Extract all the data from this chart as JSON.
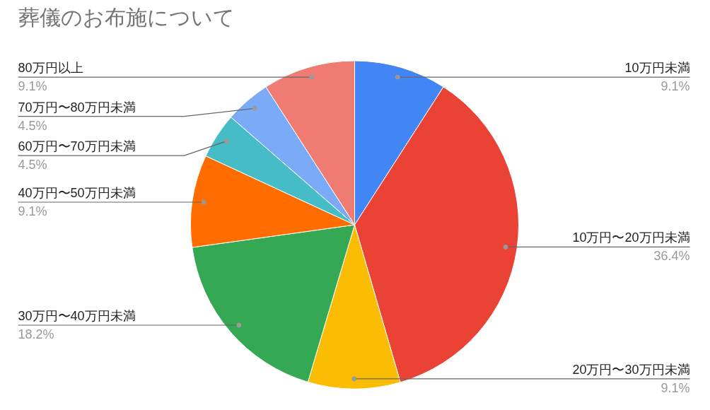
{
  "chart_data": {
    "type": "pie",
    "title": "葬儀のお布施について",
    "categories": [
      "10万円未満",
      "10万円〜20万円未満",
      "20万円〜30万円未満",
      "30万円〜40万円未満",
      "40万円〜50万円未満",
      "60万円〜70万円未満",
      "70万円〜80万円未満",
      "80万円以上"
    ],
    "values": [
      9.1,
      36.4,
      9.1,
      18.2,
      9.1,
      4.5,
      4.5,
      9.1
    ],
    "value_labels": [
      "9.1%",
      "36.4%",
      "9.1%",
      "18.2%",
      "9.1%",
      "4.5%",
      "4.5%",
      "9.1%"
    ],
    "colors": [
      "#4285f4",
      "#ea4335",
      "#fbbc04",
      "#34a853",
      "#ff6d01",
      "#46bdc6",
      "#7baaf7",
      "#f07b72"
    ]
  }
}
